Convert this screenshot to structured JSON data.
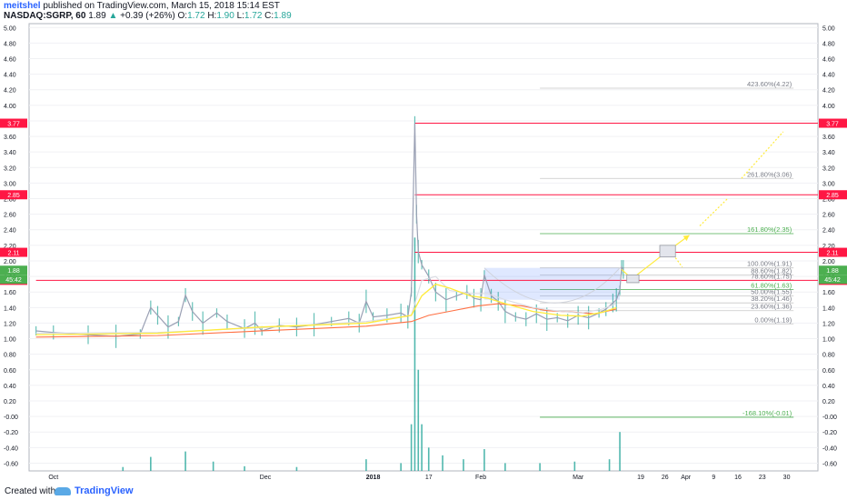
{
  "header": {
    "author": "meitshel",
    "published": "published on TradingView.com, March 15, 2018 15:14 EST",
    "symbol": "NASDAQ:SGRP, 60",
    "last": "1.89",
    "change_arrow": "▲",
    "change": "+0.39 (+26%)",
    "o_label": "O:",
    "o_value": "1.72",
    "h_label": "H:",
    "h_value": "1.90",
    "l_label": "L:",
    "l_value": "1.72",
    "c_label": "C:",
    "c_value": "1.89"
  },
  "footer": {
    "created_with": "Created with",
    "brand": "TradingView"
  },
  "colors": {
    "candles": "#c8cbd6",
    "ma_yellow": "#ffeb3b",
    "ma_orange": "#ff7043",
    "ma_white": "#ffffff",
    "resistance": "#ff1744",
    "fib": "#c7c7c7",
    "fib_green": "#4caf50",
    "projection": "#ffeb3b",
    "price_tag": "#4caf50"
  },
  "chart_data": {
    "type": "line",
    "y_ticks": [
      "5.00",
      "4.80",
      "4.60",
      "4.40",
      "4.20",
      "4.00",
      "3.80",
      "3.60",
      "3.40",
      "3.20",
      "3.00",
      "2.80",
      "2.60",
      "2.40",
      "2.20",
      "2.00",
      "1.80",
      "1.60",
      "1.40",
      "1.20",
      "1.00",
      "0.80",
      "0.60",
      "0.40",
      "0.20",
      "-0.00",
      "-0.20",
      "-0.40",
      "-0.60"
    ],
    "ylim": [
      -0.7,
      5.05
    ],
    "x_ticks": [
      {
        "label": "Oct",
        "d": 0
      },
      {
        "label": "Dec",
        "d": 61
      },
      {
        "label": "2018",
        "d": 92
      },
      {
        "label": "17",
        "d": 108
      },
      {
        "label": "Feb",
        "d": 123
      },
      {
        "label": "Mar",
        "d": 151
      },
      {
        "label": "19",
        "d": 169
      },
      {
        "label": "26",
        "d": 176
      },
      {
        "label": "Apr",
        "d": 182
      },
      {
        "label": "9",
        "d": 190
      },
      {
        "label": "16",
        "d": 197
      },
      {
        "label": "23",
        "d": 204
      },
      {
        "label": "30",
        "d": 211
      }
    ],
    "price": [
      [
        -5,
        1.1
      ],
      [
        0,
        1.08
      ],
      [
        10,
        1.05
      ],
      [
        18,
        1.03
      ],
      [
        25,
        1.06
      ],
      [
        28,
        1.4
      ],
      [
        30,
        1.3
      ],
      [
        33,
        1.15
      ],
      [
        36,
        1.22
      ],
      [
        38,
        1.56
      ],
      [
        40,
        1.35
      ],
      [
        43,
        1.2
      ],
      [
        47,
        1.33
      ],
      [
        50,
        1.22
      ],
      [
        55,
        1.13
      ],
      [
        58,
        1.2
      ],
      [
        60,
        1.1
      ],
      [
        65,
        1.17
      ],
      [
        70,
        1.15
      ],
      [
        75,
        1.18
      ],
      [
        80,
        1.22
      ],
      [
        85,
        1.26
      ],
      [
        88,
        1.2
      ],
      [
        90,
        1.48
      ],
      [
        92,
        1.28
      ],
      [
        96,
        1.3
      ],
      [
        100,
        1.33
      ],
      [
        102,
        1.28
      ],
      [
        103,
        1.6
      ],
      [
        104,
        3.77
      ],
      [
        104.5,
        2.6
      ],
      [
        105,
        2.12
      ],
      [
        106,
        1.95
      ],
      [
        108,
        1.8
      ],
      [
        110,
        1.6
      ],
      [
        113,
        1.5
      ],
      [
        116,
        1.55
      ],
      [
        119,
        1.6
      ],
      [
        121,
        1.52
      ],
      [
        123,
        1.5
      ],
      [
        124,
        1.82
      ],
      [
        126,
        1.55
      ],
      [
        128,
        1.48
      ],
      [
        130,
        1.35
      ],
      [
        133,
        1.28
      ],
      [
        136,
        1.25
      ],
      [
        139,
        1.32
      ],
      [
        142,
        1.25
      ],
      [
        145,
        1.27
      ],
      [
        148,
        1.23
      ],
      [
        151,
        1.3
      ],
      [
        154,
        1.27
      ],
      [
        157,
        1.33
      ],
      [
        159,
        1.38
      ],
      [
        161,
        1.46
      ],
      [
        162,
        1.5
      ],
      [
        163,
        1.62
      ],
      [
        163.5,
        1.92
      ],
      [
        164,
        1.89
      ]
    ],
    "ma_yellow": [
      [
        -5,
        1.05
      ],
      [
        30,
        1.07
      ],
      [
        60,
        1.15
      ],
      [
        90,
        1.2
      ],
      [
        103,
        1.3
      ],
      [
        106,
        1.55
      ],
      [
        110,
        1.7
      ],
      [
        114,
        1.65
      ],
      [
        120,
        1.55
      ],
      [
        125,
        1.52
      ],
      [
        130,
        1.45
      ],
      [
        138,
        1.35
      ],
      [
        146,
        1.3
      ],
      [
        152,
        1.29
      ],
      [
        158,
        1.34
      ],
      [
        162,
        1.4
      ]
    ],
    "ma_orange": [
      [
        -5,
        1.02
      ],
      [
        30,
        1.04
      ],
      [
        60,
        1.1
      ],
      [
        90,
        1.16
      ],
      [
        103,
        1.22
      ],
      [
        108,
        1.3
      ],
      [
        115,
        1.36
      ],
      [
        122,
        1.42
      ],
      [
        128,
        1.45
      ],
      [
        135,
        1.42
      ],
      [
        142,
        1.36
      ],
      [
        150,
        1.34
      ],
      [
        156,
        1.32
      ],
      [
        160,
        1.36
      ],
      [
        162,
        1.38
      ]
    ],
    "ma_white": [
      [
        -5,
        1.07
      ],
      [
        30,
        1.08
      ],
      [
        60,
        1.14
      ],
      [
        90,
        1.22
      ],
      [
        103,
        1.3
      ],
      [
        106,
        1.75
      ],
      [
        110,
        1.8
      ],
      [
        114,
        1.62
      ],
      [
        120,
        1.58
      ],
      [
        125,
        1.58
      ],
      [
        130,
        1.5
      ],
      [
        138,
        1.4
      ],
      [
        146,
        1.35
      ],
      [
        152,
        1.33
      ],
      [
        158,
        1.38
      ],
      [
        162,
        1.45
      ]
    ],
    "volume": [
      [
        20,
        0.05
      ],
      [
        28,
        0.18
      ],
      [
        38,
        0.25
      ],
      [
        46,
        0.12
      ],
      [
        55,
        0.06
      ],
      [
        70,
        0.05
      ],
      [
        90,
        0.15
      ],
      [
        100,
        0.1
      ],
      [
        103,
        0.6
      ],
      [
        104,
        3.0
      ],
      [
        105,
        1.3
      ],
      [
        106,
        0.6
      ],
      [
        108,
        0.3
      ],
      [
        112,
        0.2
      ],
      [
        118,
        0.15
      ],
      [
        124,
        0.28
      ],
      [
        130,
        0.1
      ],
      [
        140,
        0.1
      ],
      [
        150,
        0.12
      ],
      [
        160,
        0.15
      ],
      [
        163,
        0.5
      ]
    ],
    "resistance_lines": [
      {
        "value": 3.77,
        "label": "3.77",
        "from": 104
      },
      {
        "value": 2.85,
        "label": "2.85",
        "from": 104
      },
      {
        "value": 2.11,
        "label": "2.11",
        "from": 104
      },
      {
        "value": 1.75,
        "label": "1.75",
        "from": -5
      }
    ],
    "price_tag": {
      "value": 1.88,
      "label": "1.88",
      "countdown": "45:42"
    },
    "fib_levels": [
      {
        "label": "423.60%(4.22)",
        "value": 4.22,
        "color": "#c7c7c7"
      },
      {
        "label": "261.80%(3.06)",
        "value": 3.06,
        "color": "#c7c7c7"
      },
      {
        "label": "161.80%(2.35)",
        "value": 2.35,
        "color": "#4caf50"
      },
      {
        "label": "100.00%(1.91)",
        "value": 1.91,
        "color": "#c7c7c7"
      },
      {
        "label": "88.60%(1.82)",
        "value": 1.82,
        "color": "#c7c7c7"
      },
      {
        "label": "78.60%(1.75)",
        "value": 1.75,
        "color": "#c7c7c7"
      },
      {
        "label": "61.80%(1.63)",
        "value": 1.63,
        "color": "#4caf50"
      },
      {
        "label": "50.00%(1.55)",
        "value": 1.55,
        "color": "#c7c7c7"
      },
      {
        "label": "38.20%(1.46)",
        "value": 1.46,
        "color": "#c7c7c7"
      },
      {
        "label": "23.60%(1.36)",
        "value": 1.36,
        "color": "#c7c7c7"
      },
      {
        "label": "0.00%(1.19)",
        "value": 1.19,
        "color": "#c7c7c7"
      },
      {
        "label": "-168.10%(-0.01)",
        "value": -0.01,
        "color": "#4caf50"
      }
    ],
    "fib_range": {
      "from": 140,
      "to": 213
    },
    "cup": {
      "left": [
        124,
        1.91
      ],
      "right": [
        163,
        1.91
      ],
      "bottom": [
        145,
        1.22
      ]
    },
    "projection": {
      "points": [
        [
          163.5,
          1.89
        ],
        [
          166.5,
          1.77
        ],
        [
          176,
          2.1
        ],
        [
          183,
          2.33
        ]
      ],
      "box1": {
        "d0": 165,
        "d1": 168.5,
        "v0": 1.72,
        "v1": 1.82
      },
      "box2": {
        "d0": 174.5,
        "d1": 179,
        "v0": 2.05,
        "v1": 2.2
      },
      "dotted": [
        [
          [
            179,
            2.04
          ],
          [
            181,
            1.92
          ]
        ],
        [
          [
            186,
            2.45
          ],
          [
            194,
            2.8
          ]
        ],
        [
          [
            198,
            3.06
          ],
          [
            210,
            3.66
          ]
        ]
      ]
    }
  }
}
